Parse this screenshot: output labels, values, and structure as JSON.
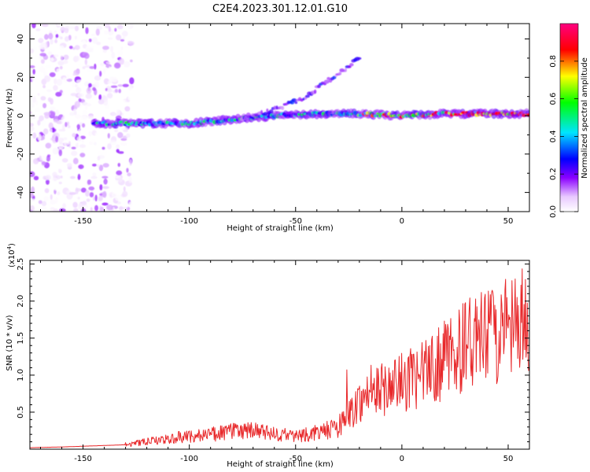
{
  "title": "C2E4.2023.301.12.01.G10",
  "chart_data": [
    {
      "type": "heatmap",
      "xlabel": "Height of straight line (km)",
      "ylabel": "Frequency (Hz)",
      "xlim": [
        -175,
        60
      ],
      "ylim": [
        -50,
        48
      ],
      "xticks": [
        -150,
        -100,
        -50,
        0,
        50
      ],
      "yticks": [
        -40,
        -20,
        0,
        20,
        40
      ],
      "grid": false,
      "colorbar": {
        "label": "Normalized spectral amplitude",
        "range": [
          0.0,
          1.0
        ],
        "ticks": [
          0.0,
          0.2,
          0.4,
          0.6,
          0.8
        ],
        "colormap": [
          "#ffffff",
          "#e8c8ff",
          "#8a00ff",
          "#0000ff",
          "#00e5ff",
          "#00ff00",
          "#ffff00",
          "#ff0000",
          "#ff0080"
        ]
      },
      "ridges": [
        {
          "x": [
            -140,
            -120,
            -100,
            -80,
            -60,
            -40,
            -20,
            0,
            20,
            40,
            60
          ],
          "y": [
            -4,
            -4,
            -4,
            -2,
            0,
            1,
            1,
            0,
            1,
            1,
            1
          ]
        },
        {
          "x": [
            -75,
            -60,
            -45,
            -35,
            -20
          ],
          "y": [
            -2,
            3,
            10,
            18,
            30
          ]
        }
      ]
    },
    {
      "type": "line",
      "xlabel": "Height of straight line (km)",
      "ylabel": "SNR (10 * v/v)",
      "y_multiplier": "(x10",
      "y_multiplier_exp": "4",
      "y_multiplier_close": ")",
      "xlim": [
        -175,
        60
      ],
      "ylim": [
        0,
        2.55
      ],
      "xticks": [
        -150,
        -100,
        -50,
        0,
        50
      ],
      "yticks": [
        0.5,
        1.0,
        1.5,
        2.0,
        2.5
      ],
      "line_color": "#e8282a",
      "grid": false,
      "series": [
        {
          "x": [
            -175,
            -160,
            -150,
            -140,
            -130,
            -120,
            -110,
            -100,
            -90,
            -80,
            -70,
            -60,
            -50,
            -40,
            -30,
            -25,
            -20,
            -15,
            -10,
            -5,
            0,
            5,
            10,
            15,
            20,
            25,
            30,
            35,
            40,
            45,
            50,
            55,
            60
          ],
          "y": [
            0.02,
            0.03,
            0.04,
            0.05,
            0.06,
            0.1,
            0.14,
            0.18,
            0.2,
            0.24,
            0.25,
            0.2,
            0.18,
            0.22,
            0.3,
            0.45,
            0.65,
            0.75,
            0.8,
            0.85,
            0.9,
            0.95,
            1.0,
            1.1,
            1.2,
            1.3,
            1.4,
            1.45,
            1.5,
            1.55,
            1.6,
            1.62,
            1.65
          ]
        }
      ]
    }
  ]
}
